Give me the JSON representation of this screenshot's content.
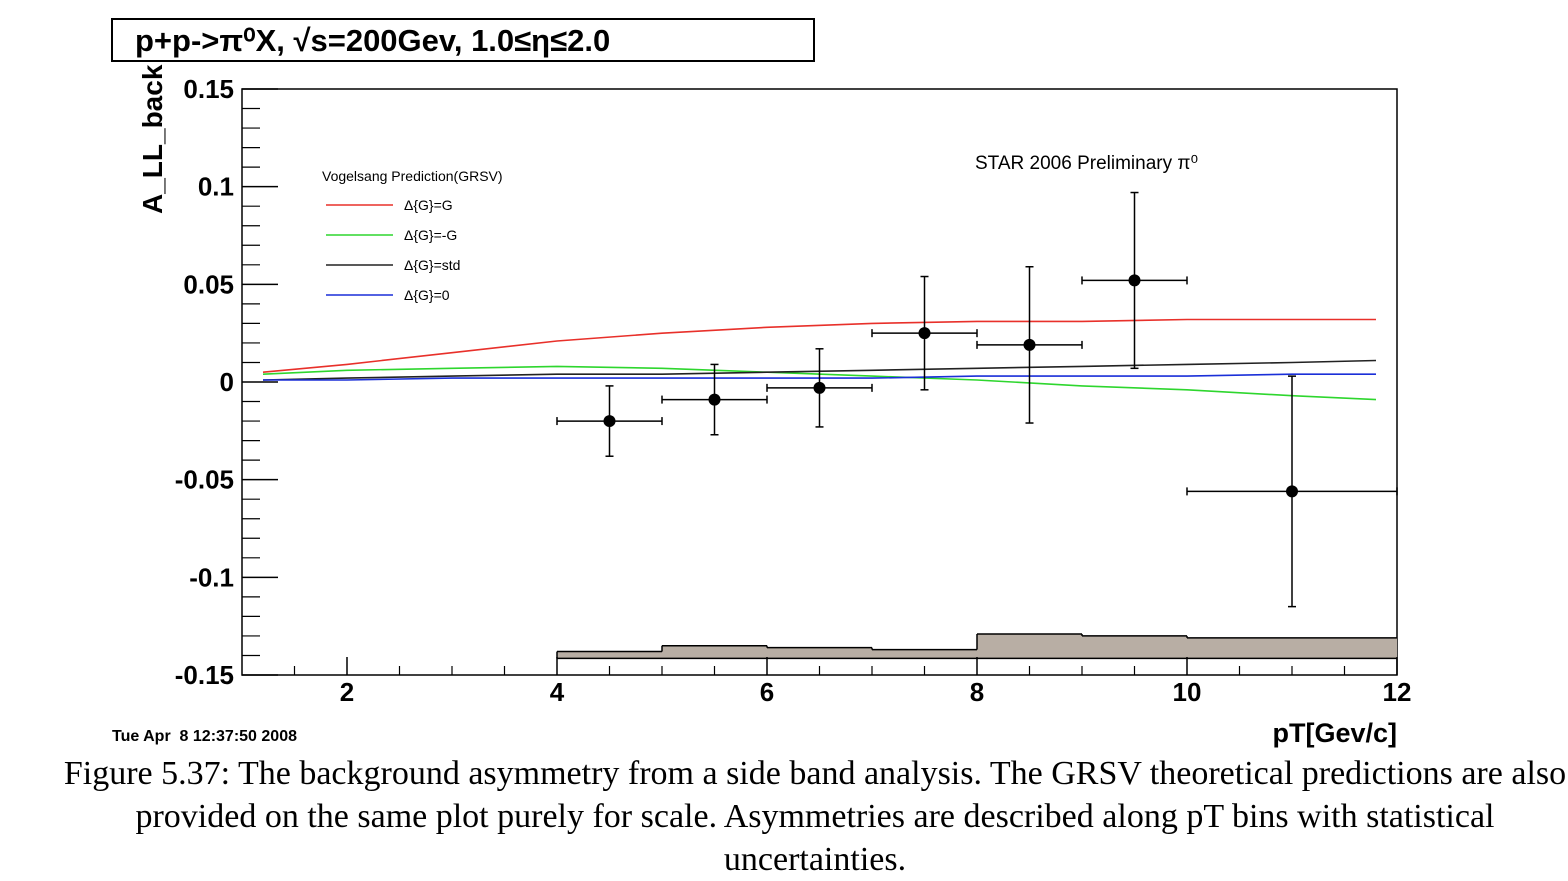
{
  "chart_data": {
    "type": "scatter",
    "title": "p+p->π⁰X, √s=200Gev, 1.0≤η≤2.0",
    "xlabel": "pT[Gev/c]",
    "ylabel": "A_LL_back",
    "xlim": [
      1.0,
      12.0
    ],
    "ylim": [
      -0.15,
      0.15
    ],
    "x_ticks": [
      "2",
      "4",
      "6",
      "8",
      "10",
      "12"
    ],
    "y_ticks": [
      "-0.15",
      "-0.1",
      "-0.05",
      "0",
      "0.05",
      "0.1",
      "0.15"
    ],
    "annotation": "STAR 2006 Preliminary π⁰",
    "legend_title": "Vogelsang Prediction(GRSV)",
    "legend_placement": "top-left",
    "grid": false,
    "timestamp": "Tue Apr  8 12:37:50 2008",
    "data_points": [
      {
        "x": 4.5,
        "y": -0.02,
        "xerr": 0.5,
        "yerr": 0.018
      },
      {
        "x": 5.5,
        "y": -0.009,
        "xerr": 0.5,
        "yerr": 0.018
      },
      {
        "x": 6.5,
        "y": -0.003,
        "xerr": 0.5,
        "yerr": 0.02
      },
      {
        "x": 7.5,
        "y": 0.025,
        "xerr": 0.5,
        "yerr": 0.029
      },
      {
        "x": 8.5,
        "y": 0.019,
        "xerr": 0.5,
        "yerr": 0.04
      },
      {
        "x": 9.5,
        "y": 0.052,
        "xerr": 0.5,
        "yerr": 0.045
      },
      {
        "x": 11.0,
        "y": -0.056,
        "xerr": 1.0,
        "yerr": 0.059
      }
    ],
    "series": [
      {
        "name": "Δ{G}=G",
        "color": "#e8302a",
        "x": [
          1.2,
          2,
          3,
          4,
          5,
          6,
          7,
          8,
          9,
          10,
          11,
          11.8
        ],
        "y": [
          0.005,
          0.009,
          0.015,
          0.021,
          0.025,
          0.028,
          0.03,
          0.031,
          0.031,
          0.032,
          0.032,
          0.032
        ]
      },
      {
        "name": "Δ{G}=-G",
        "color": "#2ed62e",
        "x": [
          1.2,
          2,
          3,
          4,
          5,
          6,
          7,
          8,
          9,
          10,
          11,
          11.8
        ],
        "y": [
          0.004,
          0.006,
          0.007,
          0.008,
          0.007,
          0.005,
          0.003,
          0.001,
          -0.002,
          -0.004,
          -0.007,
          -0.009
        ]
      },
      {
        "name": "Δ{G}=std",
        "color": "#222222",
        "x": [
          1.2,
          2,
          3,
          4,
          5,
          6,
          7,
          8,
          9,
          10,
          11,
          11.8
        ],
        "y": [
          0.001,
          0.002,
          0.003,
          0.004,
          0.004,
          0.005,
          0.006,
          0.007,
          0.008,
          0.009,
          0.01,
          0.011
        ]
      },
      {
        "name": "Δ{G}=0",
        "color": "#1a2fd8",
        "x": [
          1.2,
          2,
          3,
          4,
          5,
          6,
          7,
          8,
          9,
          10,
          11,
          11.8
        ],
        "y": [
          0.001,
          0.001,
          0.002,
          0.002,
          0.002,
          0.002,
          0.002,
          0.003,
          0.003,
          0.003,
          0.004,
          0.004
        ]
      }
    ],
    "systematic_band": {
      "color": "#b8aea4",
      "bins": [
        {
          "x0": 4,
          "x1": 5,
          "top": -0.138
        },
        {
          "x0": 5,
          "x1": 6,
          "top": -0.135
        },
        {
          "x0": 6,
          "x1": 7,
          "top": -0.136
        },
        {
          "x0": 7,
          "x1": 8,
          "top": -0.137
        },
        {
          "x0": 8,
          "x1": 9,
          "top": -0.129
        },
        {
          "x0": 9,
          "x1": 10,
          "top": -0.13
        },
        {
          "x0": 10,
          "x1": 12,
          "top": -0.131
        }
      ]
    }
  },
  "caption": "Figure 5.37: The background asymmetry from a side band analysis. The GRSV theoretical predictions are also provided on the same plot purely for scale. Asymmetries are described along pT bins with statistical uncertainties."
}
